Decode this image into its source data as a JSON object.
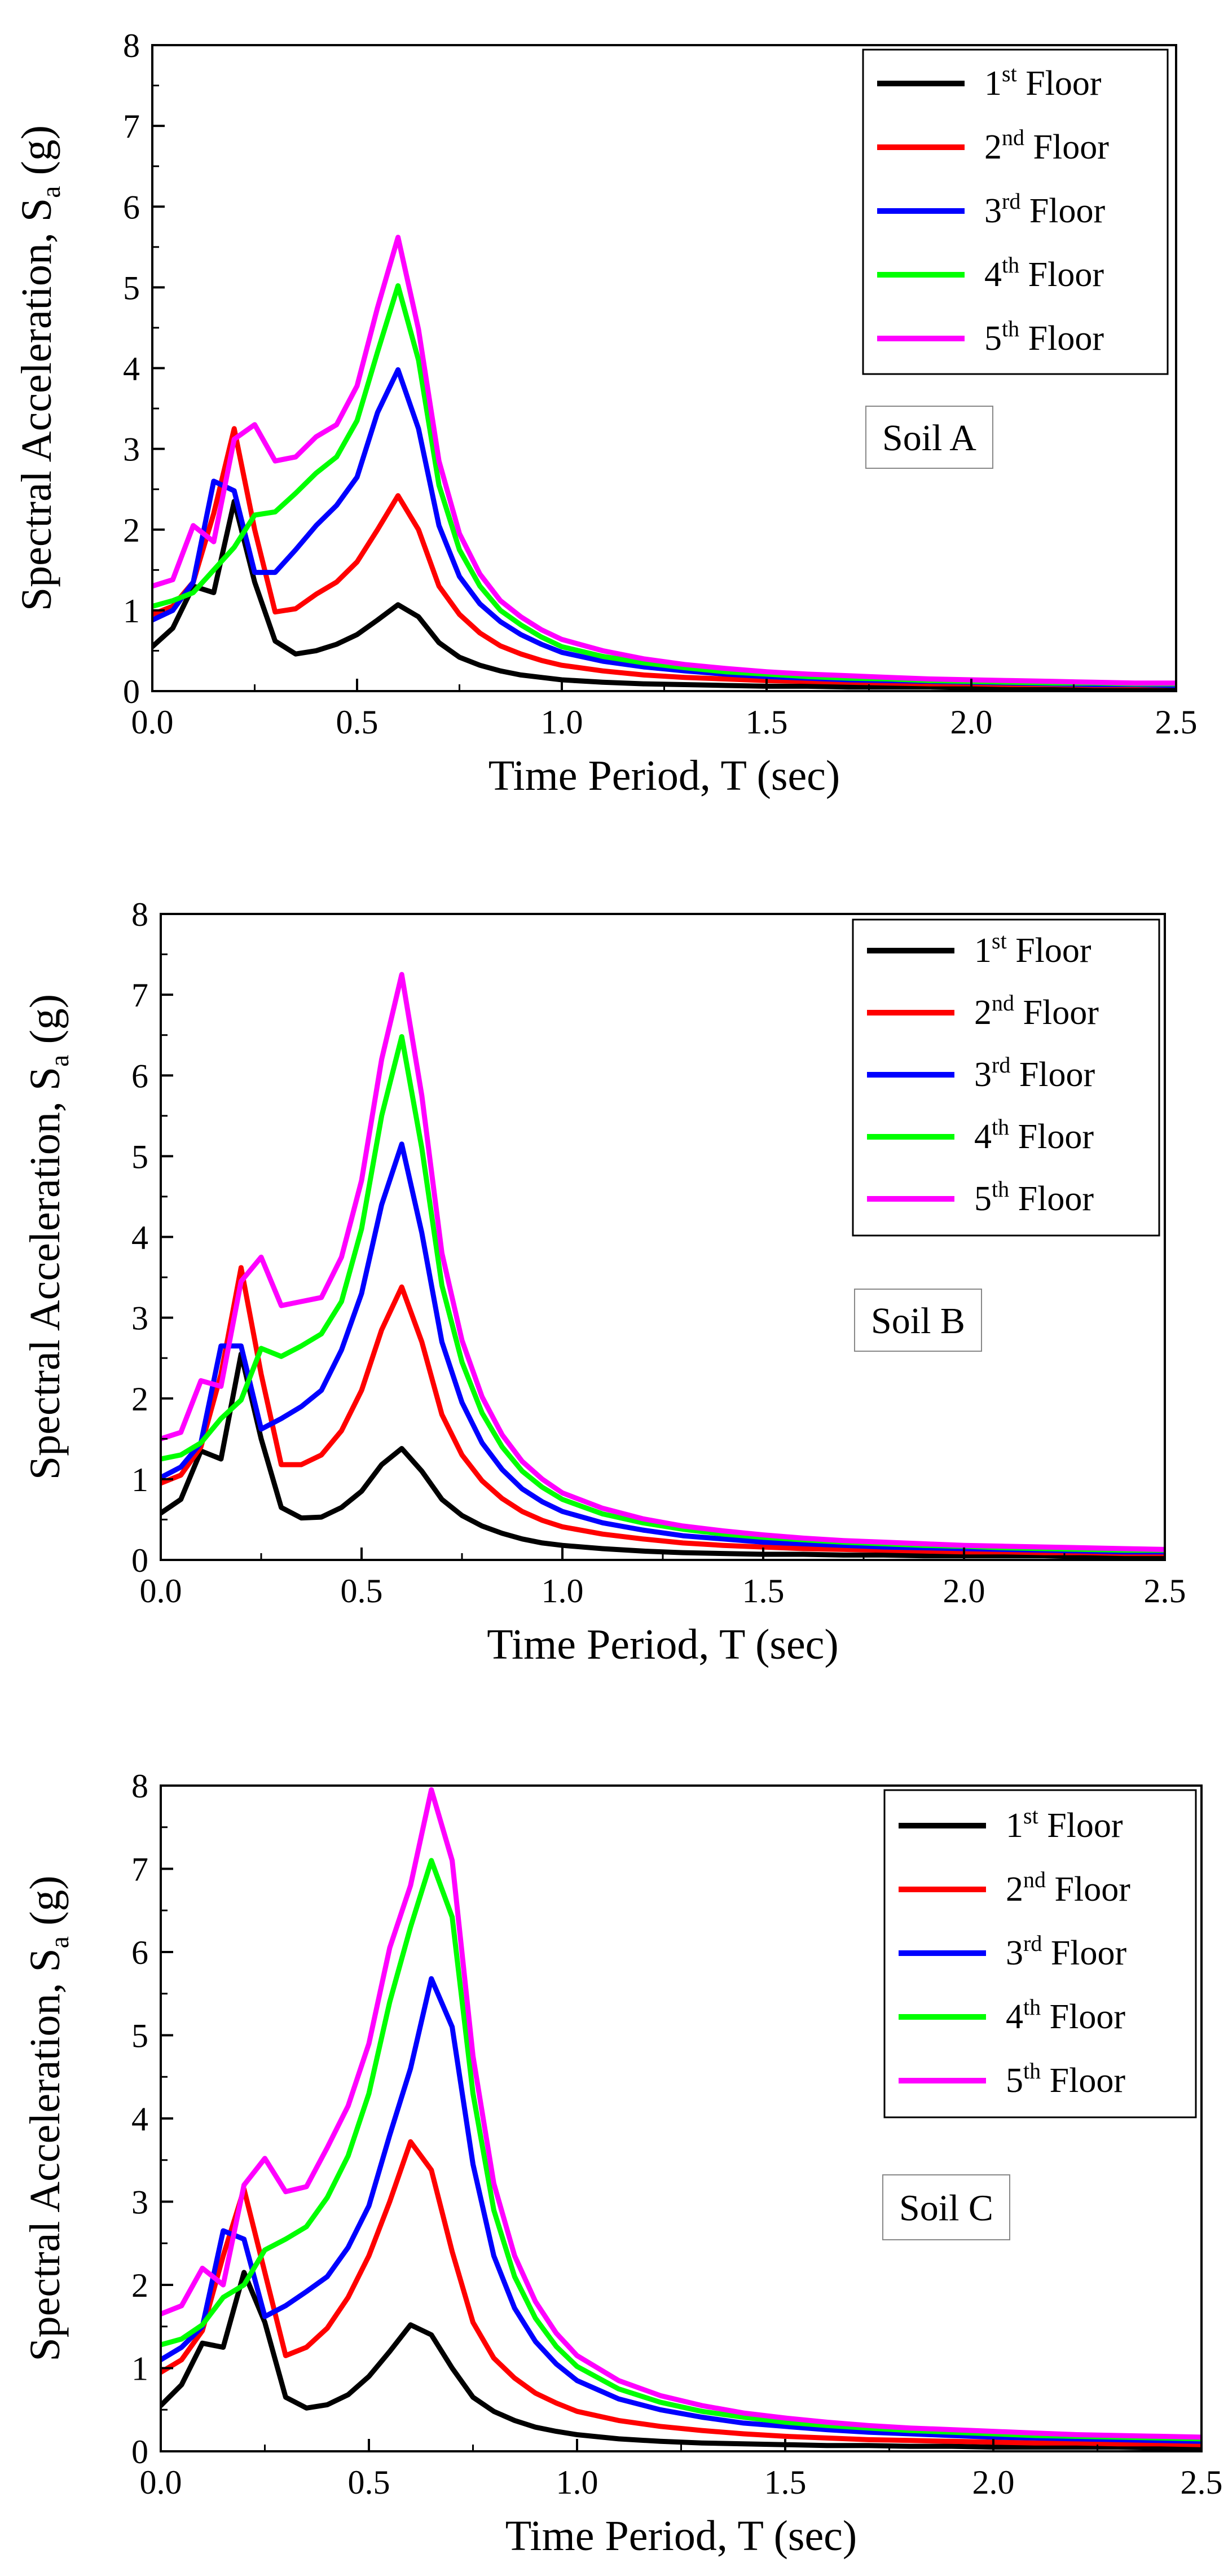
{
  "chart_data": [
    {
      "type": "line",
      "panel_label": "Soil A",
      "xlabel": "Time Period, T (sec)",
      "ylabel_main": "Spectral Acceleration, S",
      "ylabel_sub": "a",
      "ylabel_tail": " (g)",
      "xlim": [
        0,
        2.5
      ],
      "ylim": [
        0,
        8
      ],
      "xticks": [
        "0.0",
        "0.5",
        "1.0",
        "1.5",
        "2.0",
        "2.5"
      ],
      "yticks": [
        "0",
        "1",
        "2",
        "3",
        "4",
        "5",
        "6",
        "7",
        "8"
      ],
      "legend_position": "top-right",
      "x": [
        0,
        0.05,
        0.1,
        0.15,
        0.2,
        0.25,
        0.3,
        0.35,
        0.4,
        0.45,
        0.5,
        0.55,
        0.6,
        0.65,
        0.7,
        0.75,
        0.8,
        0.85,
        0.9,
        0.95,
        1.0,
        1.1,
        1.2,
        1.3,
        1.4,
        1.5,
        1.6,
        1.7,
        1.8,
        1.9,
        2.0,
        2.1,
        2.2,
        2.3,
        2.4,
        2.5
      ],
      "series": [
        {
          "name": "1st Floor",
          "name_main": "1",
          "name_sup": "st",
          "name_tail": " Floor",
          "color": "#000000",
          "values": [
            0.55,
            0.78,
            1.3,
            1.22,
            2.35,
            1.35,
            0.62,
            0.46,
            0.5,
            0.58,
            0.7,
            0.88,
            1.07,
            0.92,
            0.6,
            0.42,
            0.32,
            0.25,
            0.2,
            0.17,
            0.14,
            0.11,
            0.09,
            0.08,
            0.07,
            0.06,
            0.06,
            0.05,
            0.05,
            0.05,
            0.04,
            0.04,
            0.04,
            0.04,
            0.04,
            0.04
          ]
        },
        {
          "name": "2nd Floor",
          "name_main": "2",
          "name_sup": "nd",
          "name_tail": " Floor",
          "color": "#ff0000",
          "values": [
            0.95,
            1.05,
            1.35,
            2.2,
            3.25,
            2.0,
            0.98,
            1.02,
            1.2,
            1.35,
            1.6,
            2.0,
            2.42,
            2.0,
            1.3,
            0.95,
            0.72,
            0.56,
            0.46,
            0.38,
            0.32,
            0.25,
            0.2,
            0.17,
            0.15,
            0.13,
            0.12,
            0.11,
            0.1,
            0.09,
            0.09,
            0.08,
            0.08,
            0.07,
            0.07,
            0.07
          ]
        },
        {
          "name": "3rd Floor",
          "name_main": "3",
          "name_sup": "rd",
          "name_tail": " Floor",
          "color": "#0000ff",
          "values": [
            0.88,
            1.0,
            1.35,
            2.6,
            2.48,
            1.47,
            1.47,
            1.75,
            2.05,
            2.3,
            2.65,
            3.45,
            3.98,
            3.25,
            2.05,
            1.42,
            1.08,
            0.86,
            0.7,
            0.58,
            0.48,
            0.37,
            0.3,
            0.25,
            0.21,
            0.18,
            0.16,
            0.14,
            0.13,
            0.12,
            0.11,
            0.1,
            0.09,
            0.08,
            0.08,
            0.07
          ]
        },
        {
          "name": "4th Floor",
          "name_main": "4",
          "name_sup": "th",
          "name_tail": " Floor",
          "color": "#00ff00",
          "values": [
            1.05,
            1.12,
            1.22,
            1.5,
            1.78,
            2.18,
            2.22,
            2.45,
            2.7,
            2.9,
            3.35,
            4.2,
            5.02,
            4.1,
            2.55,
            1.75,
            1.3,
            1.0,
            0.82,
            0.67,
            0.55,
            0.43,
            0.35,
            0.29,
            0.24,
            0.21,
            0.18,
            0.16,
            0.15,
            0.13,
            0.12,
            0.11,
            0.1,
            0.1,
            0.09,
            0.09
          ]
        },
        {
          "name": "5th Floor",
          "name_main": "5",
          "name_sup": "th",
          "name_tail": " Floor",
          "color": "#ff00ff",
          "values": [
            1.3,
            1.38,
            2.05,
            1.85,
            3.12,
            3.3,
            2.85,
            2.9,
            3.15,
            3.3,
            3.78,
            4.75,
            5.62,
            4.48,
            2.85,
            1.95,
            1.45,
            1.12,
            0.92,
            0.76,
            0.64,
            0.5,
            0.4,
            0.33,
            0.28,
            0.24,
            0.21,
            0.19,
            0.17,
            0.15,
            0.14,
            0.13,
            0.12,
            0.11,
            0.1,
            0.1
          ]
        }
      ]
    },
    {
      "type": "line",
      "panel_label": "Soil B",
      "xlabel": "Time Period, T (sec)",
      "ylabel_main": "Spectral Acceleration, S",
      "ylabel_sub": "a",
      "ylabel_tail": " (g)",
      "xlim": [
        0,
        2.5
      ],
      "ylim": [
        0,
        8
      ],
      "xticks": [
        "0.0",
        "0.5",
        "1.0",
        "1.5",
        "2.0",
        "2.5"
      ],
      "yticks": [
        "0",
        "1",
        "2",
        "3",
        "4",
        "5",
        "6",
        "7",
        "8"
      ],
      "legend_position": "top-right",
      "x": [
        0,
        0.05,
        0.1,
        0.15,
        0.2,
        0.25,
        0.3,
        0.35,
        0.4,
        0.45,
        0.5,
        0.55,
        0.6,
        0.65,
        0.7,
        0.75,
        0.8,
        0.85,
        0.9,
        0.95,
        1.0,
        1.1,
        1.2,
        1.3,
        1.4,
        1.5,
        1.6,
        1.7,
        1.8,
        1.9,
        2.0,
        2.1,
        2.2,
        2.3,
        2.4,
        2.5
      ],
      "series": [
        {
          "name": "1st Floor",
          "name_main": "1",
          "name_sup": "st",
          "name_tail": " Floor",
          "color": "#000000",
          "values": [
            0.58,
            0.75,
            1.35,
            1.25,
            2.55,
            1.5,
            0.65,
            0.52,
            0.53,
            0.65,
            0.85,
            1.18,
            1.38,
            1.1,
            0.75,
            0.55,
            0.42,
            0.33,
            0.26,
            0.21,
            0.18,
            0.14,
            0.11,
            0.09,
            0.08,
            0.07,
            0.07,
            0.06,
            0.06,
            0.05,
            0.05,
            0.05,
            0.05,
            0.04,
            0.04,
            0.04
          ]
        },
        {
          "name": "2nd Floor",
          "name_main": "2",
          "name_sup": "nd",
          "name_tail": " Floor",
          "color": "#ff0000",
          "values": [
            0.95,
            1.05,
            1.4,
            2.3,
            3.62,
            2.3,
            1.18,
            1.18,
            1.3,
            1.6,
            2.1,
            2.85,
            3.38,
            2.7,
            1.8,
            1.3,
            0.98,
            0.76,
            0.6,
            0.49,
            0.41,
            0.32,
            0.26,
            0.21,
            0.18,
            0.16,
            0.14,
            0.13,
            0.12,
            0.11,
            0.1,
            0.1,
            0.09,
            0.09,
            0.08,
            0.08
          ]
        },
        {
          "name": "3rd Floor",
          "name_main": "3",
          "name_sup": "rd",
          "name_tail": " Floor",
          "color": "#0000ff",
          "values": [
            1.02,
            1.15,
            1.45,
            2.65,
            2.65,
            1.62,
            1.75,
            1.9,
            2.1,
            2.6,
            3.3,
            4.4,
            5.15,
            4.05,
            2.7,
            1.95,
            1.45,
            1.12,
            0.88,
            0.72,
            0.6,
            0.46,
            0.37,
            0.3,
            0.26,
            0.22,
            0.2,
            0.18,
            0.16,
            0.15,
            0.14,
            0.13,
            0.12,
            0.11,
            0.1,
            0.1
          ]
        },
        {
          "name": "4th Floor",
          "name_main": "4",
          "name_sup": "th",
          "name_tail": " Floor",
          "color": "#00ff00",
          "values": [
            1.25,
            1.3,
            1.45,
            1.75,
            1.98,
            2.62,
            2.52,
            2.65,
            2.8,
            3.2,
            4.1,
            5.5,
            6.48,
            5.1,
            3.4,
            2.45,
            1.82,
            1.4,
            1.1,
            0.9,
            0.75,
            0.57,
            0.46,
            0.38,
            0.32,
            0.28,
            0.25,
            0.22,
            0.2,
            0.18,
            0.17,
            0.15,
            0.14,
            0.13,
            0.12,
            0.12
          ]
        },
        {
          "name": "5th Floor",
          "name_main": "5",
          "name_sup": "th",
          "name_tail": " Floor",
          "color": "#ff00ff",
          "values": [
            1.5,
            1.58,
            2.22,
            2.15,
            3.45,
            3.75,
            3.15,
            3.2,
            3.25,
            3.75,
            4.7,
            6.2,
            7.25,
            5.75,
            3.8,
            2.72,
            2.02,
            1.55,
            1.22,
            1.0,
            0.83,
            0.64,
            0.51,
            0.42,
            0.36,
            0.31,
            0.27,
            0.24,
            0.22,
            0.2,
            0.18,
            0.17,
            0.16,
            0.15,
            0.14,
            0.13
          ]
        }
      ]
    },
    {
      "type": "line",
      "panel_label": "Soil C",
      "xlabel": "Time Period, T (sec)",
      "ylabel_main": "Spectral Acceleration, S",
      "ylabel_sub": "a",
      "ylabel_tail": " (g)",
      "xlim": [
        0,
        2.5
      ],
      "ylim": [
        0,
        8
      ],
      "xticks": [
        "0.0",
        "0.5",
        "1.0",
        "1.5",
        "2.0",
        "2.5"
      ],
      "yticks": [
        "0",
        "1",
        "2",
        "3",
        "4",
        "5",
        "6",
        "7",
        "8"
      ],
      "legend_position": "top-right",
      "x": [
        0,
        0.05,
        0.1,
        0.15,
        0.2,
        0.25,
        0.3,
        0.35,
        0.4,
        0.45,
        0.5,
        0.55,
        0.6,
        0.65,
        0.7,
        0.75,
        0.8,
        0.85,
        0.9,
        0.95,
        1.0,
        1.1,
        1.2,
        1.3,
        1.4,
        1.5,
        1.6,
        1.7,
        1.8,
        1.9,
        2.0,
        2.1,
        2.2,
        2.3,
        2.4,
        2.5
      ],
      "series": [
        {
          "name": "1st Floor",
          "name_main": "1",
          "name_sup": "st",
          "name_tail": " Floor",
          "color": "#000000",
          "values": [
            0.55,
            0.8,
            1.3,
            1.25,
            2.15,
            1.55,
            0.65,
            0.52,
            0.56,
            0.68,
            0.9,
            1.2,
            1.52,
            1.4,
            1.0,
            0.65,
            0.48,
            0.37,
            0.29,
            0.24,
            0.2,
            0.15,
            0.12,
            0.1,
            0.09,
            0.08,
            0.07,
            0.07,
            0.06,
            0.06,
            0.05,
            0.05,
            0.05,
            0.05,
            0.04,
            0.04
          ]
        },
        {
          "name": "2nd Floor",
          "name_main": "2",
          "name_sup": "nd",
          "name_tail": " Floor",
          "color": "#ff0000",
          "values": [
            0.95,
            1.1,
            1.45,
            2.35,
            3.15,
            2.15,
            1.15,
            1.25,
            1.48,
            1.85,
            2.35,
            3.0,
            3.72,
            3.38,
            2.4,
            1.55,
            1.12,
            0.88,
            0.7,
            0.58,
            0.48,
            0.37,
            0.3,
            0.25,
            0.21,
            0.18,
            0.16,
            0.14,
            0.13,
            0.12,
            0.11,
            0.1,
            0.1,
            0.09,
            0.09,
            0.08
          ]
        },
        {
          "name": "3rd Floor",
          "name_main": "3",
          "name_sup": "rd",
          "name_tail": " Floor",
          "color": "#0000ff",
          "values": [
            1.1,
            1.25,
            1.5,
            2.65,
            2.55,
            1.62,
            1.75,
            1.92,
            2.1,
            2.45,
            2.95,
            3.8,
            4.6,
            5.68,
            5.1,
            3.45,
            2.35,
            1.72,
            1.32,
            1.05,
            0.85,
            0.63,
            0.5,
            0.41,
            0.34,
            0.3,
            0.26,
            0.23,
            0.21,
            0.19,
            0.17,
            0.16,
            0.15,
            0.14,
            0.13,
            0.12
          ]
        },
        {
          "name": "4th Floor",
          "name_main": "4",
          "name_sup": "th",
          "name_tail": " Floor",
          "color": "#00ff00",
          "values": [
            1.28,
            1.35,
            1.52,
            1.85,
            2.0,
            2.42,
            2.55,
            2.7,
            3.05,
            3.55,
            4.3,
            5.4,
            6.3,
            7.1,
            6.42,
            4.3,
            2.9,
            2.1,
            1.6,
            1.26,
            1.02,
            0.75,
            0.59,
            0.48,
            0.41,
            0.35,
            0.31,
            0.28,
            0.25,
            0.23,
            0.21,
            0.19,
            0.18,
            0.17,
            0.16,
            0.15
          ]
        },
        {
          "name": "5th Floor",
          "name_main": "5",
          "name_sup": "th",
          "name_tail": " Floor",
          "color": "#ff00ff",
          "values": [
            1.65,
            1.75,
            2.2,
            2.0,
            3.2,
            3.52,
            3.12,
            3.18,
            3.65,
            4.15,
            4.9,
            6.05,
            6.8,
            7.95,
            7.1,
            4.75,
            3.22,
            2.35,
            1.8,
            1.42,
            1.15,
            0.85,
            0.67,
            0.55,
            0.46,
            0.4,
            0.35,
            0.31,
            0.28,
            0.26,
            0.24,
            0.22,
            0.2,
            0.19,
            0.18,
            0.17
          ]
        }
      ]
    }
  ]
}
